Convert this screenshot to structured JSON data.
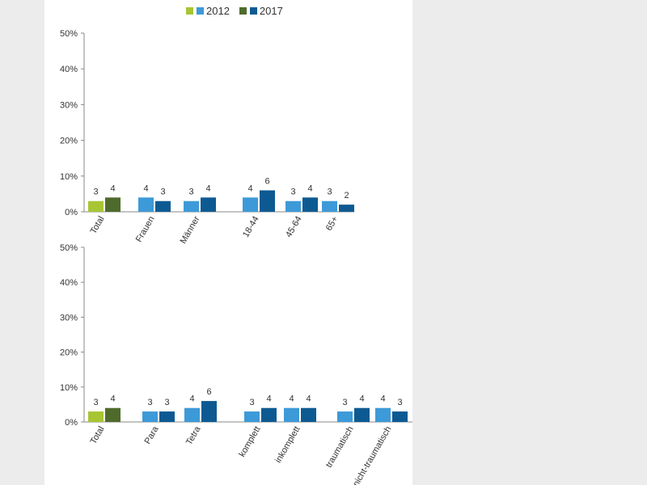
{
  "legend": {
    "label_2012": "2012",
    "label_2017": "2017",
    "colors_2012": [
      "#a8c534",
      "#3d9ad8"
    ],
    "colors_2017": [
      "#4f6b2c",
      "#0d5a92"
    ]
  },
  "chart_data": [
    {
      "type": "bar",
      "ylim": [
        0,
        50
      ],
      "yticks": [
        "0%",
        "10%",
        "20%",
        "30%",
        "40%",
        "50%"
      ],
      "grid": false,
      "groups": [
        {
          "label": "Total",
          "total": true,
          "values": [
            3,
            4
          ]
        },
        {
          "label": "Frauen",
          "values": [
            4,
            3
          ]
        },
        {
          "label": "Männer",
          "values": [
            3,
            4
          ]
        },
        {
          "label": "18-44",
          "values": [
            4,
            6
          ]
        },
        {
          "label": "45-64",
          "values": [
            3,
            4
          ]
        },
        {
          "label": "65+",
          "values": [
            3,
            2
          ]
        }
      ],
      "series": [
        {
          "name": "2012"
        },
        {
          "name": "2017"
        }
      ]
    },
    {
      "type": "bar",
      "ylim": [
        0,
        50
      ],
      "yticks": [
        "0%",
        "10%",
        "20%",
        "30%",
        "40%",
        "50%"
      ],
      "grid": false,
      "groups": [
        {
          "label": "Total",
          "total": true,
          "values": [
            3,
            4
          ]
        },
        {
          "label": "Para",
          "values": [
            3,
            3
          ]
        },
        {
          "label": "Tetra",
          "values": [
            4,
            6
          ]
        },
        {
          "label": "komplett",
          "values": [
            3,
            4
          ]
        },
        {
          "label": "inkomplett",
          "values": [
            4,
            4
          ]
        },
        {
          "label": "traumatisch",
          "values": [
            3,
            4
          ]
        },
        {
          "label": "nicht-traumatisch",
          "values": [
            4,
            3
          ]
        }
      ],
      "series": [
        {
          "name": "2012"
        },
        {
          "name": "2017"
        }
      ]
    }
  ]
}
